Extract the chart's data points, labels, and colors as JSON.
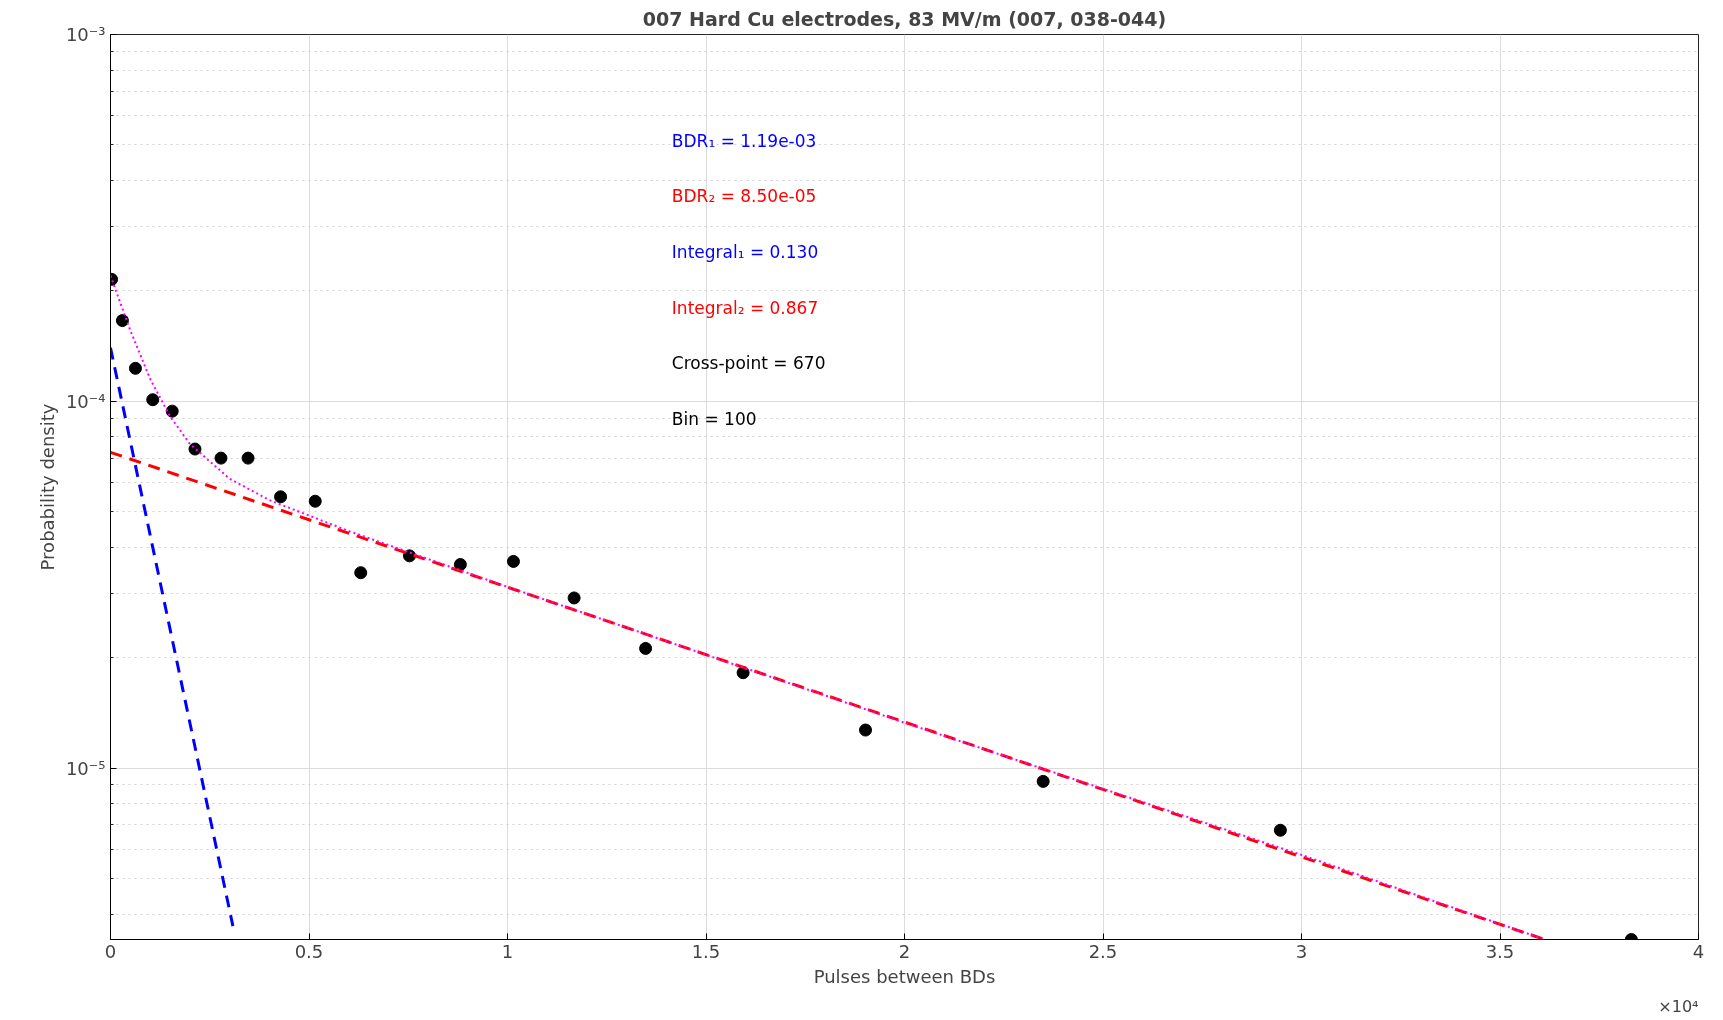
{
  "chart_data": {
    "type": "scatter",
    "title": "007 Hard Cu electrodes, 83 MV/m (007, 038-044)",
    "xlabel": "Pulses between BDs",
    "ylabel": "Probability density",
    "annotations": [
      "BDR₁ = 1.19e-03",
      "BDR₂ = 8.50e-05",
      "Integral₁ = 0.130",
      "Integral₂ = 0.867",
      "Cross-point = 670",
      "Bin = 100",
      "×10⁴"
    ],
    "log": "y",
    "grid": true,
    "xlim": [
      0,
      4
    ],
    "xticks": [
      0,
      0.5,
      1,
      1.5,
      2,
      2.5,
      3,
      3.5,
      4
    ],
    "ylim": [
      3.41e-06,
      0.001
    ],
    "yticks": [
      {
        "value": 4e-06,
        "label": null
      },
      {
        "value": 5e-06,
        "label": null
      },
      {
        "value": 6e-06,
        "label": null
      },
      {
        "value": 7e-06,
        "label": null
      },
      {
        "value": 8e-06,
        "label": null
      },
      {
        "value": 9e-06,
        "label": null
      },
      {
        "value": 1e-05,
        "label": "10⁻⁵"
      },
      {
        "value": 2e-05,
        "label": null
      },
      {
        "value": 3e-05,
        "label": null
      },
      {
        "value": 4e-05,
        "label": null
      },
      {
        "value": 5e-05,
        "label": null
      },
      {
        "value": 6e-05,
        "label": null
      },
      {
        "value": 7e-05,
        "label": null
      },
      {
        "value": 8e-05,
        "label": null
      },
      {
        "value": 9e-05,
        "label": null
      },
      {
        "value": 0.0001,
        "label": "10⁻⁴"
      },
      {
        "value": 0.0002,
        "label": null
      },
      {
        "value": 0.0003,
        "label": null
      },
      {
        "value": 0.0004,
        "label": null
      },
      {
        "value": 0.0005,
        "label": null
      },
      {
        "value": 0.0006,
        "label": null
      },
      {
        "value": 0.0007,
        "label": null
      },
      {
        "value": 0.0008,
        "label": null
      },
      {
        "value": 0.0009,
        "label": null
      },
      {
        "value": 0.001,
        "label": "10⁻³"
      }
    ],
    "series": [
      {
        "marker": "circle",
        "color": "#000000",
        "x": [
          0.0027,
          0.03,
          0.0628,
          0.1064,
          0.1555,
          0.2128,
          0.2783,
          0.3465,
          0.4284,
          0.5157,
          0.6303,
          0.7531,
          0.8813,
          1.015,
          1.1678,
          1.3479,
          1.5935,
          1.9018,
          2.3493,
          2.9468,
          3.8309
        ],
        "values": [
          0.000215,
          0.000166,
          0.000123,
          0.000101,
          9.4e-05,
          7.41e-05,
          7e-05,
          7e-05,
          5.49e-05,
          5.34e-05,
          3.41e-05,
          3.79e-05,
          3.59e-05,
          3.66e-05,
          2.91e-05,
          2.12e-05,
          1.82e-05,
          1.27e-05,
          9.2e-06,
          6.77e-06,
          3.41e-06
        ]
      },
      {
        "type": "line",
        "line_style": "dashed",
        "color": "#0000ff",
        "x": [
          0,
          0.3083
        ],
        "values": [
          0.00014,
          3.71e-06
        ]
      },
      {
        "type": "line",
        "line_style": "dashed",
        "color": "#ff0000",
        "x": [
          0,
          3.6125
        ],
        "values": [
          7.26e-05,
          3.41e-06
        ]
      },
      {
        "type": "line",
        "line_style": "dotted",
        "color": "#ff00ff",
        "x": [
          0,
          0.05,
          0.1,
          0.15,
          0.2,
          0.3,
          0.4,
          0.6,
          1.0,
          2.0,
          3.0,
          3.6125
        ],
        "values": [
          0.00022,
          0.000156,
          0.000115,
          9.1e-05,
          7.65e-05,
          6.15e-05,
          5.38e-05,
          4.43e-05,
          3.12e-05,
          1.33e-05,
          5.8e-06,
          3.41e-06
        ]
      }
    ]
  }
}
